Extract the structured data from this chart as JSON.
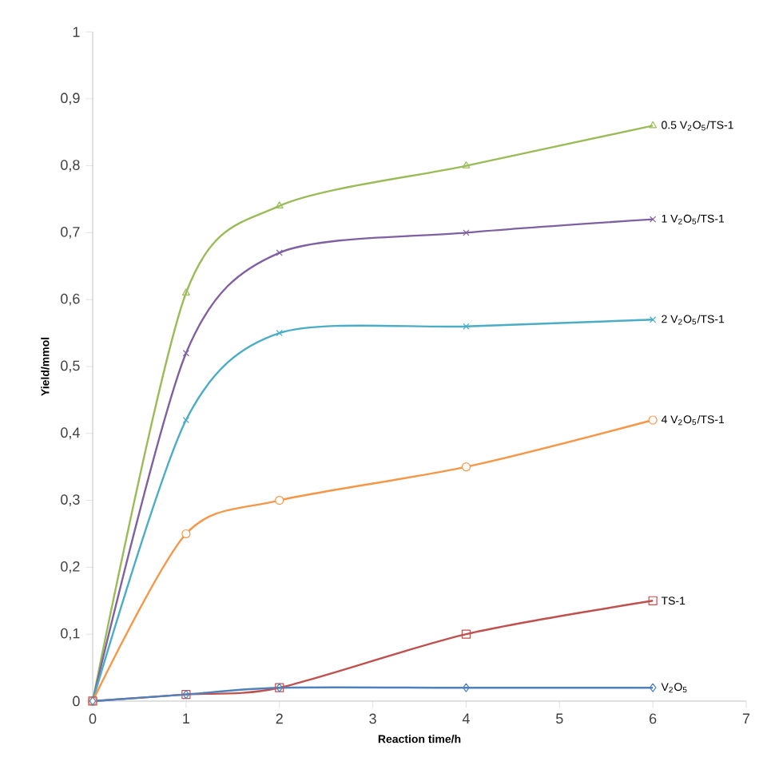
{
  "chart_data": {
    "type": "line",
    "xlabel": "Reaction time/h",
    "ylabel": "Yield/mmol",
    "x": [
      0,
      1,
      2,
      4,
      6
    ],
    "series": [
      {
        "name": "0.5 V$_{2}$O$_{5}$/TS-1",
        "color": "#9bbb59",
        "marker": "triangle",
        "values": [
          0,
          0.61,
          0.74,
          0.8,
          0.86
        ]
      },
      {
        "name": "1 V$_{2}$O$_{5}$/TS-1",
        "color": "#7f60a0",
        "marker": "cross",
        "values": [
          0,
          0.52,
          0.67,
          0.7,
          0.72
        ]
      },
      {
        "name": "2 V$_{2}$O$_{5}$/TS-1",
        "color": "#4bacc6",
        "marker": "cross",
        "values": [
          0,
          0.42,
          0.55,
          0.56,
          0.57
        ]
      },
      {
        "name": "4 V$_{2}$O$_{5}$/TS-1",
        "color": "#f79646",
        "marker": "circle",
        "values": [
          0,
          0.25,
          0.3,
          0.35,
          0.42
        ]
      },
      {
        "name": "TS-1",
        "color": "#c0504d",
        "marker": "square",
        "values": [
          0,
          0.01,
          0.02,
          0.1,
          0.15
        ]
      },
      {
        "name": "V$_{2}$O$_{5}$",
        "color": "#4f81bd",
        "marker": "diamond",
        "values": [
          0,
          0.01,
          0.02,
          0.02,
          0.02
        ]
      }
    ],
    "xlim": [
      0,
      7
    ],
    "xticks": [
      0,
      1,
      2,
      3,
      4,
      5,
      6,
      7
    ],
    "ylim": [
      0,
      1
    ],
    "yticks": [
      0,
      {
        "value": 0.1,
        "label": "0,1"
      },
      {
        "value": 0.2,
        "label": "0,2"
      },
      {
        "value": 0.3,
        "label": "0,3"
      },
      {
        "value": 0.4,
        "label": "0,4"
      },
      {
        "value": 0.5,
        "label": "0,5"
      },
      {
        "value": 0.6,
        "label": "0,6"
      },
      {
        "value": 0.7,
        "label": "0,7"
      },
      {
        "value": 0.8,
        "label": "0,8"
      },
      {
        "value": 0.9,
        "label": "0,9"
      },
      1
    ],
    "grid": false,
    "legend": false,
    "line_style": "solid"
  }
}
